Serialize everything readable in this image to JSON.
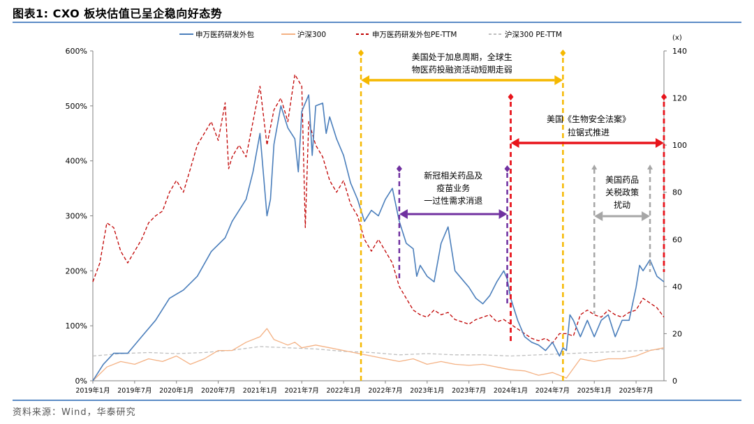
{
  "header": {
    "title": "图表1:  CXO 板块估值已呈企稳向好态势"
  },
  "footer": {
    "source": "资料来源：Wind，华泰研究"
  },
  "colors": {
    "accent_rule": "#5b8bc6",
    "gold": "#f5b800",
    "red": "#e8141b",
    "purple": "#7030a0",
    "gray": "#a6a6a6"
  },
  "chart_data": {
    "type": "line",
    "y_left": {
      "ticks": [
        "0%",
        "100%",
        "200%",
        "300%",
        "400%",
        "500%",
        "600%"
      ],
      "range": [
        0,
        600
      ]
    },
    "y_right": {
      "unit_label": "(x)",
      "ticks": [
        "0",
        "20",
        "40",
        "60",
        "80",
        "100",
        "120",
        "140"
      ],
      "range": [
        0,
        140
      ]
    },
    "x_ticks": [
      "2019年1月",
      "2019年7月",
      "2020年1月",
      "2020年7月",
      "2021年1月",
      "2021年7月",
      "2022年1月",
      "2022年7月",
      "2023年1月",
      "2023年7月",
      "2024年1月",
      "2024年7月",
      "2025年1月",
      "2025年7月"
    ],
    "x_range": [
      0,
      82
    ],
    "series": [
      {
        "name": "申万医药研发外包",
        "axis": "left",
        "color": "#4a7ebb",
        "dash": "solid",
        "x": [
          0,
          1.5,
          3,
          5,
          7,
          9,
          11,
          13,
          15,
          17,
          19,
          20,
          22,
          23,
          24,
          25,
          25.5,
          26,
          27,
          28,
          29,
          29.5,
          30,
          31,
          31.5,
          32,
          33,
          33.5,
          34,
          35,
          36,
          37,
          38,
          39,
          40,
          41,
          42,
          43,
          44,
          45,
          46,
          46.5,
          47,
          48,
          49,
          50,
          51,
          52,
          53,
          54,
          55,
          56,
          57,
          58,
          59,
          59.5,
          60,
          61,
          62,
          63,
          64,
          65,
          66,
          67,
          67.5,
          68,
          68.5,
          69,
          70,
          71,
          72,
          73,
          74,
          75,
          76,
          77,
          78,
          78.5,
          79,
          80,
          81,
          82
        ],
        "values": [
          0,
          30,
          50,
          50,
          80,
          110,
          150,
          165,
          190,
          235,
          260,
          290,
          330,
          380,
          450,
          300,
          330,
          430,
          500,
          460,
          440,
          380,
          490,
          520,
          410,
          500,
          505,
          450,
          480,
          440,
          410,
          360,
          330,
          290,
          310,
          300,
          330,
          350,
          290,
          250,
          240,
          190,
          210,
          190,
          180,
          250,
          280,
          200,
          185,
          170,
          150,
          140,
          155,
          180,
          200,
          185,
          150,
          110,
          80,
          70,
          65,
          55,
          70,
          45,
          60,
          55,
          120,
          110,
          80,
          110,
          80,
          110,
          120,
          80,
          110,
          110,
          170,
          210,
          200,
          220,
          190,
          180
        ]
      },
      {
        "name": "沪深300",
        "axis": "left",
        "color": "#f4b183",
        "dash": "solid",
        "x": [
          0,
          2,
          4,
          6,
          8,
          10,
          12,
          14,
          16,
          18,
          20,
          22,
          24,
          25,
          26,
          27,
          28,
          29,
          30,
          32,
          34,
          36,
          38,
          40,
          42,
          44,
          46,
          48,
          50,
          52,
          54,
          56,
          58,
          60,
          62,
          64,
          66,
          68,
          70,
          72,
          74,
          76,
          78,
          80,
          82
        ],
        "values": [
          0,
          25,
          35,
          30,
          40,
          35,
          45,
          30,
          40,
          55,
          55,
          70,
          80,
          95,
          75,
          70,
          65,
          70,
          60,
          65,
          60,
          55,
          50,
          45,
          40,
          35,
          40,
          30,
          35,
          30,
          28,
          30,
          25,
          20,
          18,
          10,
          15,
          5,
          40,
          35,
          40,
          40,
          45,
          55,
          60
        ]
      },
      {
        "name": "申万医药研发外包PE-TTM",
        "axis": "right",
        "color": "#c00000",
        "dash": "dashed",
        "x": [
          0,
          1,
          2,
          3,
          4,
          5,
          6,
          7,
          8,
          9,
          10,
          11,
          12,
          13,
          14,
          15,
          16,
          17,
          18,
          19,
          19.5,
          20,
          21,
          22,
          23,
          24,
          25,
          26,
          27,
          28,
          29,
          30,
          30.5,
          31,
          32,
          33,
          34,
          35,
          36,
          37,
          38,
          39,
          40,
          41,
          42,
          43,
          44,
          45,
          46,
          47,
          48,
          49,
          50,
          51,
          52,
          53,
          54,
          55,
          56,
          57,
          58,
          59,
          60,
          61,
          62,
          63,
          64,
          65,
          66,
          67,
          68,
          69,
          70,
          71,
          72,
          73,
          74,
          75,
          76,
          77,
          78,
          79,
          80,
          81,
          82
        ],
        "values": [
          42,
          50,
          67,
          65,
          55,
          50,
          55,
          60,
          67,
          70,
          72,
          80,
          85,
          80,
          90,
          100,
          105,
          110,
          102,
          118,
          90,
          95,
          100,
          95,
          110,
          125,
          100,
          115,
          120,
          110,
          130,
          125,
          65,
          110,
          100,
          95,
          85,
          80,
          85,
          75,
          70,
          60,
          55,
          60,
          55,
          50,
          40,
          35,
          30,
          28,
          27,
          30,
          28,
          29,
          26,
          25,
          24,
          26,
          27,
          28,
          25,
          26,
          24,
          22,
          20,
          18,
          17,
          18,
          16,
          20,
          20,
          19,
          28,
          30,
          28,
          27,
          30,
          28,
          27,
          29,
          30,
          35,
          33,
          31,
          27
        ]
      },
      {
        "name": "沪深300 PE-TTM",
        "axis": "right",
        "color": "#bfbfbf",
        "dash": "dashed",
        "x": [
          0,
          4,
          8,
          12,
          16,
          20,
          24,
          28,
          32,
          36,
          40,
          44,
          48,
          52,
          56,
          60,
          64,
          68,
          72,
          76,
          80,
          82
        ],
        "values": [
          10.5,
          11.5,
          12,
          11.5,
          12,
          13,
          14.5,
          14,
          13.5,
          12.5,
          12,
          11,
          11.5,
          11,
          11,
          10.5,
          11,
          11.5,
          12,
          12.5,
          13,
          13.5
        ]
      }
    ],
    "annotations": [
      {
        "text_lines": [
          "美国处于加息周期，全球生",
          "物医药投融资活动短期走弱"
        ],
        "color": "#f5b800",
        "x_start": 38.5,
        "x_end": 67.5
      },
      {
        "text_lines": [
          "美国《生物安全法案》",
          "拉锯式推进"
        ],
        "color": "#e8141b",
        "x_start": 60,
        "x_end": 82
      },
      {
        "text_lines": [
          "新冠相关药品及",
          "疫苗业务",
          "一过性需求消退"
        ],
        "color": "#7030a0",
        "x_start": 44,
        "x_end": 59.5
      },
      {
        "text_lines": [
          "美国药品",
          "关税政策",
          "扰动"
        ],
        "color": "#a6a6a6",
        "x_start": 72,
        "x_end": 80
      }
    ]
  }
}
